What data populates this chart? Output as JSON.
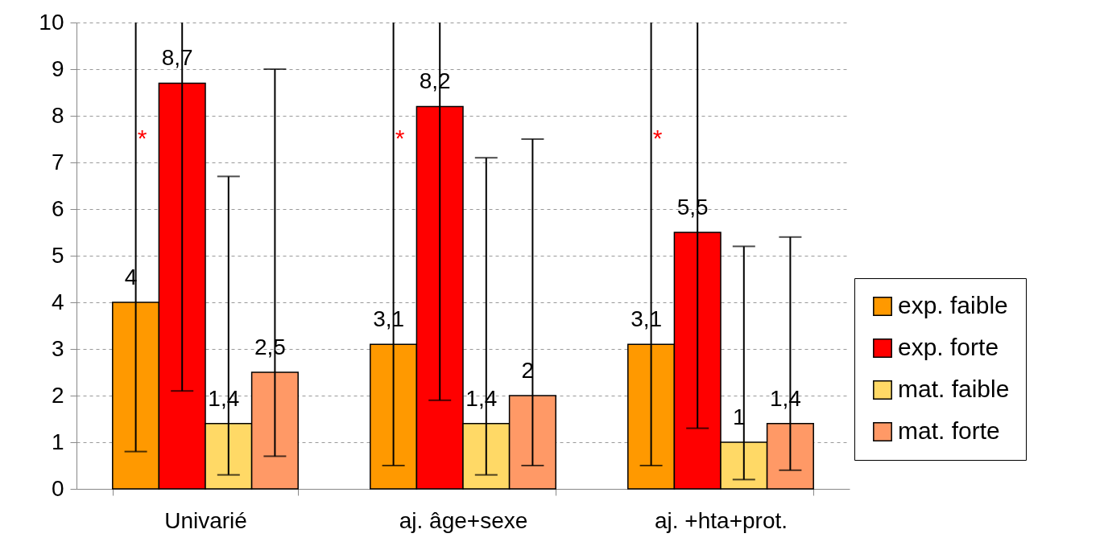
{
  "chart_data": {
    "type": "bar",
    "categories": [
      "Univarié",
      "aj. âge+sexe",
      "aj. +hta+prot."
    ],
    "series": [
      {
        "name": "exp. faible",
        "color": "#ff9900",
        "values": [
          4,
          3.1,
          3.1
        ],
        "value_labels": [
          "4",
          "3,1",
          "3,1"
        ],
        "errors": [
          [
            0.8,
            10
          ],
          [
            0.5,
            10
          ],
          [
            0.5,
            10
          ]
        ]
      },
      {
        "name": "exp. forte",
        "color": "#ff0000",
        "values": [
          8.7,
          8.2,
          5.5
        ],
        "value_labels": [
          "8,7",
          "8,2",
          "5,5"
        ],
        "errors": [
          [
            2.1,
            10
          ],
          [
            1.9,
            10
          ],
          [
            1.3,
            10
          ]
        ]
      },
      {
        "name": "mat. faible",
        "color": "#ffd966",
        "values": [
          1.4,
          1.4,
          1
        ],
        "value_labels": [
          "1,4",
          "1,4",
          "1"
        ],
        "errors": [
          [
            0.3,
            6.7
          ],
          [
            0.3,
            7.1
          ],
          [
            0.2,
            5.2
          ]
        ]
      },
      {
        "name": "mat. forte",
        "color": "#ff9966",
        "values": [
          2.5,
          2,
          1.4
        ],
        "value_labels": [
          "2,5",
          "2",
          "1,4"
        ],
        "errors": [
          [
            0.7,
            9
          ],
          [
            0.5,
            7.5
          ],
          [
            0.4,
            5.4
          ]
        ]
      }
    ],
    "ylim": [
      0,
      10
    ],
    "yticks": [
      0,
      1,
      2,
      3,
      4,
      5,
      6,
      7,
      8,
      9,
      10
    ],
    "grid": "y",
    "legend": "bottom right",
    "annotations": [
      "*",
      "*",
      "*"
    ]
  }
}
